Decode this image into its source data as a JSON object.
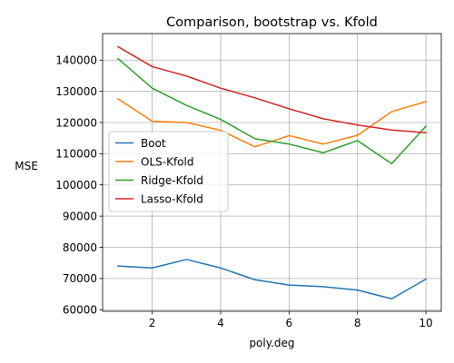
{
  "chart_data": {
    "type": "line",
    "title": "Comparison, bootstrap vs. Kfold",
    "xlabel": "poly.deg",
    "ylabel": "MSE",
    "xlim": [
      0.55,
      10.45
    ],
    "ylim": [
      59500,
      148500
    ],
    "xticks": [
      2,
      4,
      6,
      8,
      10
    ],
    "xtick_labels": [
      "2",
      "4",
      "6",
      "8",
      "10"
    ],
    "yticks": [
      60000,
      70000,
      80000,
      90000,
      100000,
      110000,
      120000,
      130000,
      140000
    ],
    "ytick_labels": [
      "60000",
      "70000",
      "80000",
      "90000",
      "100000",
      "110000",
      "120000",
      "130000",
      "140000"
    ],
    "grid": true,
    "legend_position": "center-left",
    "x": [
      1,
      2,
      3,
      4,
      5,
      6,
      7,
      8,
      9,
      10
    ],
    "series": [
      {
        "name": "Boot",
        "color": "#1f77b4",
        "values": [
          74000,
          73400,
          76100,
          73400,
          69600,
          67900,
          67400,
          66300,
          63500,
          69800
        ]
      },
      {
        "name": "OLS-Kfold",
        "color": "#ff7f0e",
        "values": [
          127600,
          120400,
          120000,
          117500,
          112200,
          115800,
          113100,
          115900,
          123500,
          126700
        ]
      },
      {
        "name": "Ridge-Kfold",
        "color": "#2ca02c",
        "values": [
          140500,
          131000,
          125500,
          121000,
          114800,
          113100,
          110300,
          114200,
          106800,
          118800
        ]
      },
      {
        "name": "Lasso-Kfold",
        "color": "#d62728",
        "values": [
          144300,
          137900,
          134900,
          131000,
          127900,
          124400,
          121200,
          119200,
          117600,
          116700
        ]
      }
    ]
  }
}
